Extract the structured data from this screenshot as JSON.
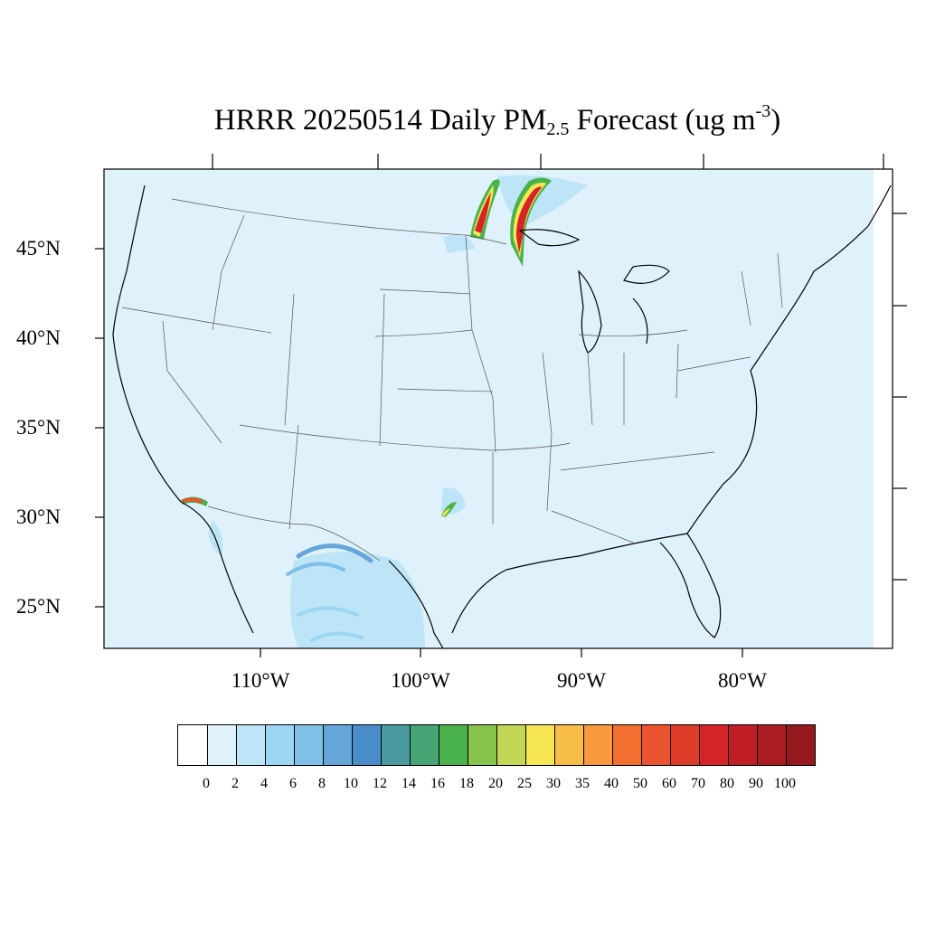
{
  "title": {
    "prefix": "HRRR 20250514 Daily PM",
    "subscript": "2.5",
    "middle": " Forecast (ug m",
    "superscript": "-3",
    "suffix": ")"
  },
  "map": {
    "projection": "Lambert Conformal",
    "region": "Contiguous United States",
    "background_color": "#dff1fa",
    "lat_labels": [
      "45°N",
      "40°N",
      "35°N",
      "30°N",
      "25°N"
    ],
    "lon_labels": [
      "110°W",
      "100°W",
      "90°W",
      "80°W"
    ],
    "plumes": [
      {
        "name": "minnesota-west-plume",
        "peak_class": "100"
      },
      {
        "name": "minnesota-east-plume",
        "peak_class": "100"
      },
      {
        "name": "southwest-plume",
        "peak_class": "60"
      },
      {
        "name": "texas-plume",
        "peak_class": "40"
      },
      {
        "name": "mexico-plumes",
        "peak_class": "12"
      }
    ]
  },
  "colorbar": {
    "labels": [
      "0",
      "2",
      "4",
      "6",
      "8",
      "10",
      "12",
      "14",
      "16",
      "18",
      "20",
      "25",
      "30",
      "35",
      "40",
      "50",
      "60",
      "70",
      "80",
      "90",
      "100"
    ],
    "colors": [
      "#ffffff",
      "#dff1fa",
      "#bde5f7",
      "#9dd6f3",
      "#80bfe6",
      "#65a6db",
      "#4a8dca",
      "#489a9f",
      "#47a474",
      "#4ab24a",
      "#86c44d",
      "#c3d756",
      "#f6e655",
      "#f7bd48",
      "#f69a3d",
      "#f36f30",
      "#ea532d",
      "#df3b28",
      "#d52428",
      "#bf1e26",
      "#a91d22",
      "#941a1d"
    ]
  }
}
